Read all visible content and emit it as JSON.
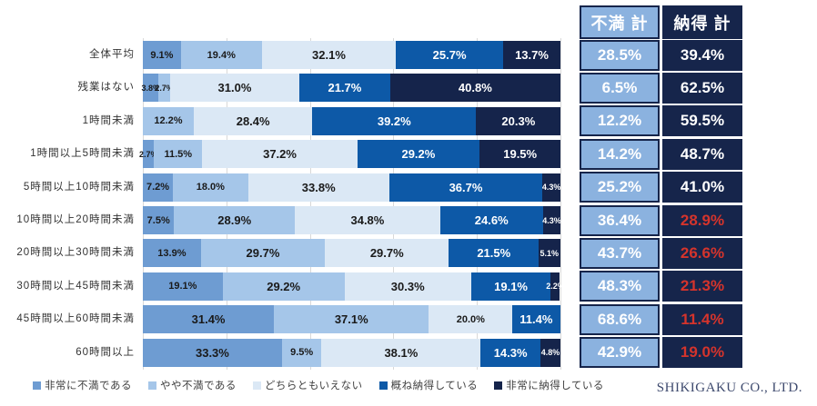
{
  "chart_data": {
    "type": "bar",
    "variant": "horizontal-stacked-100",
    "title": "",
    "unit": "%",
    "xlim": [
      0,
      100
    ],
    "grid": true,
    "grid_step": 20,
    "legend_position": "bottom",
    "categories": [
      "全体平均",
      "残業はない",
      "1時間未満",
      "1時間以上5時間未満",
      "5時間以上10時間未満",
      "10時間以上20時間未満",
      "20時間以上30時間未満",
      "30時間以上45時間未満",
      "45時間以上60時間未満",
      "60時間以上"
    ],
    "series": [
      {
        "name": "非常に不満である",
        "values": [
          9.1,
          3.8,
          0,
          2.7,
          7.2,
          7.5,
          13.9,
          19.1,
          31.4,
          33.3
        ]
      },
      {
        "name": "やや不満である",
        "values": [
          19.4,
          2.7,
          12.2,
          11.5,
          18.0,
          28.9,
          29.7,
          29.2,
          37.1,
          9.5
        ]
      },
      {
        "name": "どちらともいえない",
        "values": [
          32.1,
          31.0,
          28.4,
          37.2,
          33.8,
          34.8,
          29.7,
          30.3,
          20.0,
          38.1
        ]
      },
      {
        "name": "概ね納得している",
        "values": [
          25.7,
          21.7,
          39.2,
          29.2,
          36.7,
          24.6,
          21.5,
          19.1,
          11.4,
          14.3
        ]
      },
      {
        "name": "非常に納得している",
        "values": [
          13.7,
          40.8,
          20.3,
          19.5,
          4.3,
          4.3,
          5.1,
          2.2,
          0,
          4.8
        ]
      }
    ]
  },
  "legend": {
    "items": [
      "非常に不満である",
      "やや不満である",
      "どちらともいえない",
      "概ね納得している",
      "非常に納得している"
    ]
  },
  "summary_table": {
    "headers": {
      "dissatisfied": "不満 計",
      "satisfied": "納得 計"
    },
    "rows": [
      {
        "dissatisfied": "28.5%",
        "satisfied": "39.4%",
        "satisfied_highlight": false
      },
      {
        "dissatisfied": "6.5%",
        "satisfied": "62.5%",
        "satisfied_highlight": false
      },
      {
        "dissatisfied": "12.2%",
        "satisfied": "59.5%",
        "satisfied_highlight": false
      },
      {
        "dissatisfied": "14.2%",
        "satisfied": "48.7%",
        "satisfied_highlight": false
      },
      {
        "dissatisfied": "25.2%",
        "satisfied": "41.0%",
        "satisfied_highlight": false
      },
      {
        "dissatisfied": "36.4%",
        "satisfied": "28.9%",
        "satisfied_highlight": true
      },
      {
        "dissatisfied": "43.7%",
        "satisfied": "26.6%",
        "satisfied_highlight": true
      },
      {
        "dissatisfied": "48.3%",
        "satisfied": "21.3%",
        "satisfied_highlight": true
      },
      {
        "dissatisfied": "68.6%",
        "satisfied": "11.4%",
        "satisfied_highlight": true
      },
      {
        "dissatisfied": "42.9%",
        "satisfied": "19.0%",
        "satisfied_highlight": true
      }
    ]
  },
  "colors": {
    "series": [
      "#6E9CD2",
      "#A5C6E9",
      "#DBE8F5",
      "#0D59A7",
      "#15244B"
    ],
    "bar_label_dark": "#1A1A1A",
    "bar_label_light": "#FFFFFF",
    "table_cell_dissatisfied_bg": "#8BB2DF",
    "table_cell_satisfied_bg": "#16254B",
    "table_border": "#16254B",
    "table_text": "#FFFFFF",
    "table_highlight_text": "#D5342C",
    "gridline": "#D9D9D9"
  },
  "footer": {
    "company": "SHIKIGAKU CO., LTD."
  }
}
